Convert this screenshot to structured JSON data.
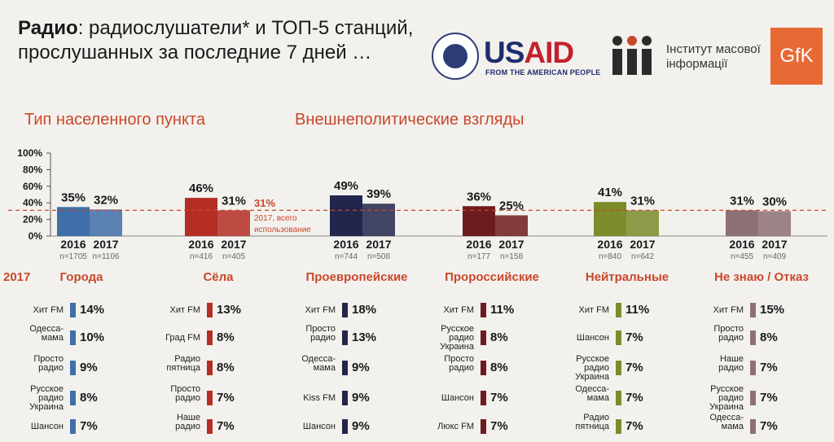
{
  "header": {
    "title_bold": "Радио",
    "title_rest": ": радиослушатели* и ТОП-5 станций, прослушанных за последние 7 дней …"
  },
  "logos": {
    "usaid_us": "US",
    "usaid_aid": "AID",
    "usaid_sub": "FROM THE AMERICAN PEOPLE",
    "imi_line1": "Інститут масової",
    "imi_line2": "інформації",
    "gfk": "GfK"
  },
  "sections": {
    "settlement": "Тип населенного пункта",
    "foreign": "Внешнеполитические взгляды"
  },
  "colors": {
    "Города": "#3f6fa8",
    "Сёла": "#b42e24",
    "Проевропейские": "#22264c",
    "Пророссийские": "#6e1b1f",
    "Нейтральные": "#7d8b2a",
    "Не знаю / Отказ": "#8d7076"
  },
  "chart_data": {
    "type": "bar",
    "yticks": [
      "0%",
      "10%",
      "20%",
      "30%",
      "40%",
      "50%",
      "60%",
      "70%",
      "80%",
      "90%",
      "100%"
    ],
    "ylim": [
      0,
      100
    ],
    "reference_line": {
      "value": 31,
      "label": "31%",
      "note": "2017, всего использование"
    },
    "groups": [
      {
        "name": "Города",
        "years": [
          "2016",
          "2017"
        ],
        "values": [
          35,
          32
        ],
        "labels": [
          "35%",
          "32%"
        ],
        "n": [
          "n=1705",
          "n=1106"
        ]
      },
      {
        "name": "Сёла",
        "years": [
          "2016",
          "2017"
        ],
        "values": [
          46,
          31
        ],
        "labels": [
          "46%",
          "31%"
        ],
        "n": [
          "n=416",
          "n=405"
        ]
      },
      {
        "name": "Проевропейские",
        "years": [
          "2016",
          "2017"
        ],
        "values": [
          49,
          39
        ],
        "labels": [
          "49%",
          "39%"
        ],
        "n": [
          "n=744",
          "n=508"
        ]
      },
      {
        "name": "Пророссийские",
        "years": [
          "2016",
          "2017"
        ],
        "values": [
          36,
          25
        ],
        "labels": [
          "36%",
          "25%"
        ],
        "n": [
          "n=177",
          "n=158"
        ]
      },
      {
        "name": "Нейтральные",
        "years": [
          "2016",
          "2017"
        ],
        "values": [
          41,
          31
        ],
        "labels": [
          "41%",
          "31%"
        ],
        "n": [
          "n=840",
          "n=642"
        ]
      },
      {
        "name": "Не знаю / Отказ",
        "years": [
          "2016",
          "2017"
        ],
        "values": [
          31,
          30
        ],
        "labels": [
          "31%",
          "30%"
        ],
        "n": [
          "n=455",
          "n=409"
        ]
      }
    ],
    "top5_year": "2017",
    "top5": [
      {
        "group": "Города",
        "stations": [
          {
            "name": "Хит FM",
            "value": 14,
            "label": "14%"
          },
          {
            "name": "Одесса-мама",
            "value": 10,
            "label": "10%"
          },
          {
            "name": "Просто радио",
            "value": 9,
            "label": "9%"
          },
          {
            "name": "Русское радио Украина",
            "value": 8,
            "label": "8%"
          },
          {
            "name": "Шансон",
            "value": 7,
            "label": "7%"
          }
        ]
      },
      {
        "group": "Сёла",
        "stations": [
          {
            "name": "Хит FM",
            "value": 13,
            "label": "13%"
          },
          {
            "name": "Град FM",
            "value": 8,
            "label": "8%"
          },
          {
            "name": "Радио пятница",
            "value": 8,
            "label": "8%"
          },
          {
            "name": "Просто радио",
            "value": 7,
            "label": "7%"
          },
          {
            "name": "Наше радио",
            "value": 7,
            "label": "7%"
          }
        ]
      },
      {
        "group": "Проевропейские",
        "stations": [
          {
            "name": "Хит FM",
            "value": 18,
            "label": "18%"
          },
          {
            "name": "Просто радио",
            "value": 13,
            "label": "13%"
          },
          {
            "name": "Одесса-мама",
            "value": 9,
            "label": "9%"
          },
          {
            "name": "Kiss FM",
            "value": 9,
            "label": "9%"
          },
          {
            "name": "Шансон",
            "value": 9,
            "label": "9%"
          }
        ]
      },
      {
        "group": "Пророссийские",
        "stations": [
          {
            "name": "Хит FM",
            "value": 11,
            "label": "11%"
          },
          {
            "name": "Русское радио Украина",
            "value": 8,
            "label": "8%"
          },
          {
            "name": "Просто радио",
            "value": 8,
            "label": "8%"
          },
          {
            "name": "Шансон",
            "value": 7,
            "label": "7%"
          },
          {
            "name": "Люкс FM",
            "value": 7,
            "label": "7%"
          }
        ]
      },
      {
        "group": "Нейтральные",
        "stations": [
          {
            "name": "Хит FM",
            "value": 11,
            "label": "11%"
          },
          {
            "name": "Шансон",
            "value": 7,
            "label": "7%"
          },
          {
            "name": "Русское радио Украина",
            "value": 7,
            "label": "7%"
          },
          {
            "name": "Одесса-мама",
            "value": 7,
            "label": "7%"
          },
          {
            "name": "Радио пятница",
            "value": 7,
            "label": "7%"
          }
        ]
      },
      {
        "group": "Не знаю / Отказ",
        "stations": [
          {
            "name": "Хит FM",
            "value": 15,
            "label": "15%"
          },
          {
            "name": "Просто радио",
            "value": 8,
            "label": "8%"
          },
          {
            "name": "Наше радио",
            "value": 7,
            "label": "7%"
          },
          {
            "name": "Русское радио Украина",
            "value": 7,
            "label": "7%"
          },
          {
            "name": "Одесса-мама",
            "value": 7,
            "label": "7%"
          }
        ]
      }
    ]
  }
}
